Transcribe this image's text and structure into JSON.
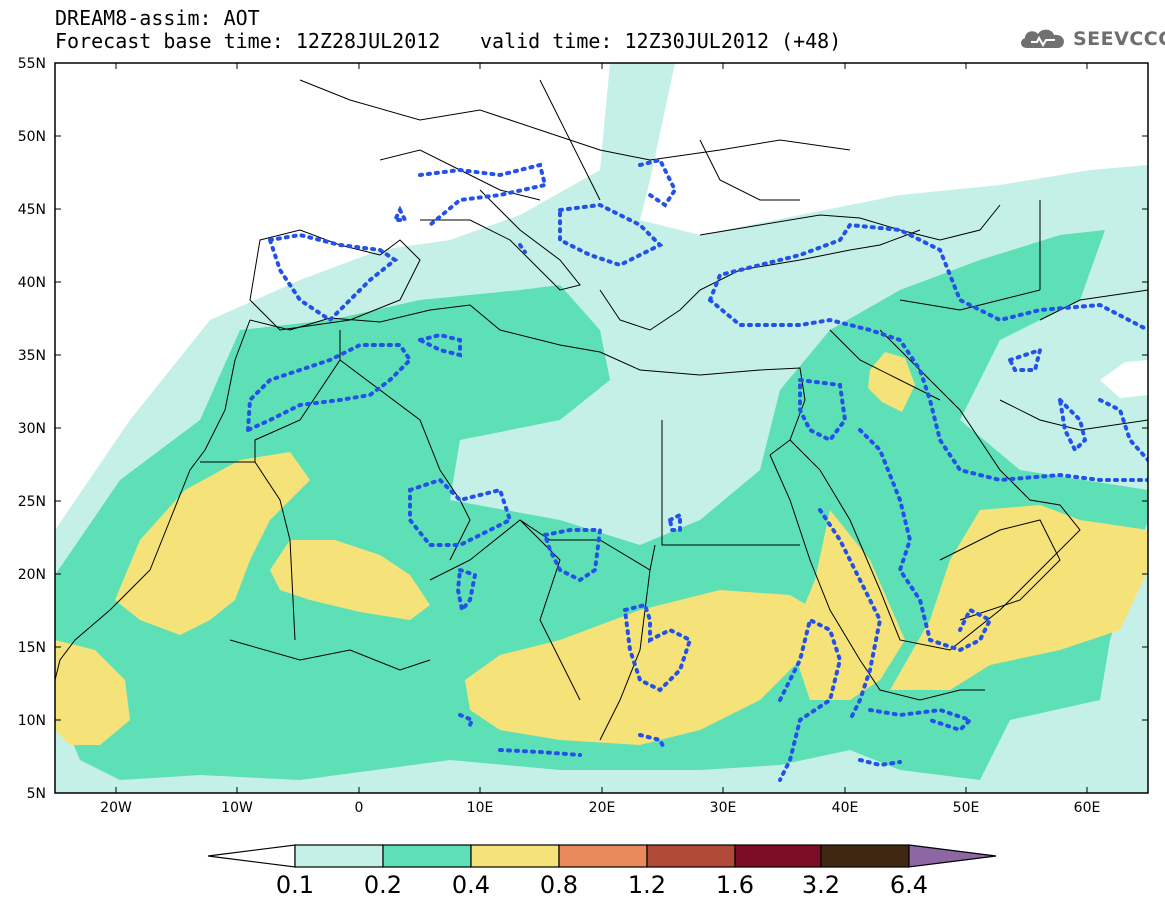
{
  "header": {
    "model_line": "DREAM8-assim: AOT",
    "base_time": "Forecast base time: 12Z28JUL2012",
    "valid_time": "valid time: 12Z30JUL2012 (+48)",
    "logo_text": "SEEVCCC"
  },
  "map": {
    "lon_range": [
      -25,
      65
    ],
    "lat_range": [
      5,
      55
    ],
    "lat_ticks": [
      "55N",
      "50N",
      "45N",
      "40N",
      "35N",
      "30N",
      "25N",
      "20N",
      "15N",
      "10N",
      "5N"
    ],
    "lon_ticks": [
      "20W",
      "10W",
      "0",
      "10E",
      "20E",
      "30E",
      "40E",
      "50E",
      "60E"
    ]
  },
  "colorbar": {
    "labels": [
      "0.1",
      "0.2",
      "0.4",
      "0.8",
      "1.2",
      "1.6",
      "3.2",
      "6.4"
    ],
    "colors": [
      "#ffffff",
      "#c4f0e8",
      "#5ee0b6",
      "#f5e37a",
      "#e98a5c",
      "#b04a37",
      "#7c0b25",
      "#3f2712",
      "#8d67a4"
    ]
  }
}
